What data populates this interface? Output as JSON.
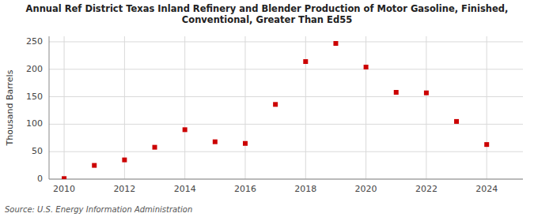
{
  "chart_data": {
    "type": "scatter",
    "title": "Annual Ref District Texas Inland Refinery and Blender Production of Motor Gasoline, Finished,\nConventional, Greater Than Ed55",
    "y_label": "Thousand Barrels",
    "annotations": [
      "Source: U.S. Energy Information Administration"
    ],
    "x": [
      2010,
      2011,
      2012,
      2013,
      2014,
      2015,
      2016,
      2017,
      2018,
      2019,
      2020,
      2021,
      2022,
      2023,
      2024
    ],
    "values": [
      1,
      25,
      35,
      58,
      90,
      68,
      65,
      136,
      214,
      247,
      204,
      158,
      157,
      105,
      63
    ],
    "color": "#cc0000",
    "marker": "square",
    "xlim": [
      2009.5,
      2025.2
    ],
    "ylim": [
      0,
      260
    ],
    "xticks": [
      2010,
      2012,
      2014,
      2016,
      2018,
      2020,
      2022,
      2024
    ],
    "yticks": [
      0,
      50,
      100,
      150,
      200,
      250
    ],
    "grid": true
  }
}
